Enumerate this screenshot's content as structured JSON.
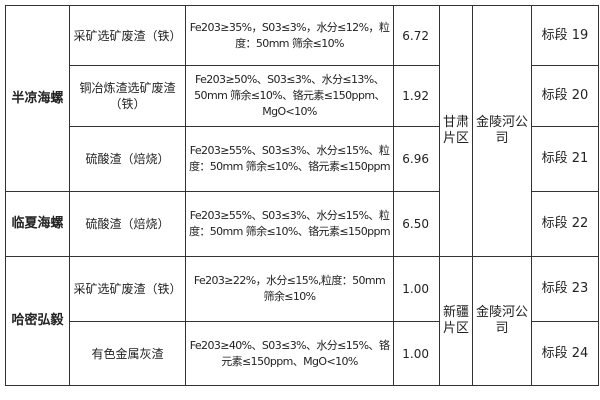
{
  "rows": [
    {
      "region": "半凉海螺",
      "material": "采矿选矿废渣（铁）",
      "spec": "Fe203≥35%，S03≤3%，水分≤12%，粒度：50mm 筛余≤10%",
      "value": "6.72",
      "area": "甘肃片区",
      "company": "金陵河公司",
      "lot": "标段 19"
    },
    {
      "material": "铜冶炼渣选矿废渣（铁）",
      "spec": "Fe203≥50%、S03≤3%、水分≤13%、50mm 筛余≤10%、铬元素≤150ppm、MgO<10%",
      "value": "1.92",
      "lot": "标段 20"
    },
    {
      "material": "硫酸渣（焙烧）",
      "spec": "Fe203≥55%、S03≤3%、水分≤15%、粒度：50mm 筛余≤10%、铬元素≤150ppm",
      "value": "6.96",
      "lot": "标段 21"
    },
    {
      "region": "临夏海螺",
      "material": "硫酸渣（焙烧）",
      "spec": "Fe203≥55%、S03≤3%、水分≤15%、粒度：50mm 筛余≤10%、铬元素≤150ppm",
      "value": "6.50",
      "lot": "标段 22"
    },
    {
      "region": "哈密弘毅",
      "material": "采矿选矿废渣（铁）",
      "spec": "Fe203≥22%，水分≤15%,粒度：50mm 筛余≤10%",
      "value": "1.00",
      "area": "新疆片区",
      "company": "金陵河公司",
      "lot": "标段 23"
    },
    {
      "material": "有色金属灰渣",
      "spec": "Fe203≥40%、S03≤3%、水分≤15%、铬元素≤150ppm、MgO<10%",
      "value": "1.00",
      "lot": "标段 24"
    }
  ]
}
